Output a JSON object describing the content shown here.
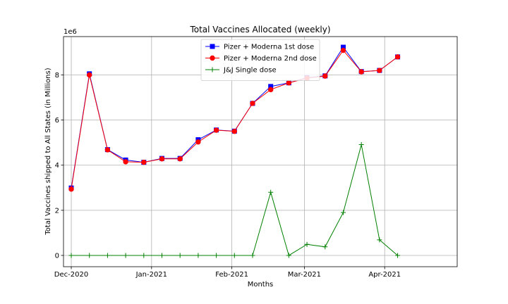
{
  "chart_data": {
    "type": "line",
    "title": "Total Vaccines Allocated (weekly)",
    "xlabel": "Months",
    "ylabel": "Total Vaccines shipped to All States (in Millions)",
    "y_offset_label": "1e6",
    "x_ticks": [
      {
        "date": "2020-12-01",
        "label": "Dec-2020"
      },
      {
        "date": "2021-01-01",
        "label": "Jan-2021"
      },
      {
        "date": "2021-02-01",
        "label": "Feb-2021"
      },
      {
        "date": "2021-03-01",
        "label": "Mar-2021"
      },
      {
        "date": "2021-04-01",
        "label": "Apr-2021"
      }
    ],
    "y_ticks": [
      0,
      2,
      4,
      6,
      8
    ],
    "xlim": [
      "2020-11-28",
      "2021-04-29"
    ],
    "ylim": [
      -0.5,
      9.7
    ],
    "grid": true,
    "legend_position": "top-center",
    "x": [
      "2020-12-01",
      "2020-12-08",
      "2020-12-15",
      "2020-12-22",
      "2020-12-29",
      "2021-01-05",
      "2021-01-12",
      "2021-01-19",
      "2021-01-26",
      "2021-02-02",
      "2021-02-09",
      "2021-02-16",
      "2021-02-23",
      "2021-03-02",
      "2021-03-09",
      "2021-03-16",
      "2021-03-23",
      "2021-03-30",
      "2021-04-06",
      "2021-04-13",
      "2021-04-20"
    ],
    "series": [
      {
        "name": "Pizer + Moderna 1st dose",
        "color": "#0000ff",
        "marker": "square",
        "values": [
          2.99,
          8.05,
          4.69,
          4.23,
          4.13,
          4.3,
          4.3,
          5.13,
          5.56,
          5.51,
          6.74,
          7.49,
          7.65,
          7.88,
          7.96,
          9.23,
          8.15,
          8.2,
          8.8,
          null,
          null
        ]
      },
      {
        "name": "Pizer + Moderna 2nd dose",
        "color": "#ff0000",
        "marker": "circle",
        "values": [
          2.94,
          8.0,
          4.68,
          4.15,
          4.13,
          4.28,
          4.28,
          5.03,
          5.55,
          5.5,
          6.74,
          7.35,
          7.65,
          7.86,
          7.95,
          9.09,
          8.14,
          8.2,
          8.8,
          null,
          null
        ]
      },
      {
        "name": "J&J Single dose",
        "color": "#008000",
        "marker": "plus",
        "values": [
          0,
          0,
          0,
          0,
          0,
          0,
          0,
          0,
          0,
          0,
          0,
          2.8,
          0,
          0.49,
          0.38,
          1.9,
          4.91,
          0.69,
          0,
          null,
          null
        ]
      }
    ]
  }
}
